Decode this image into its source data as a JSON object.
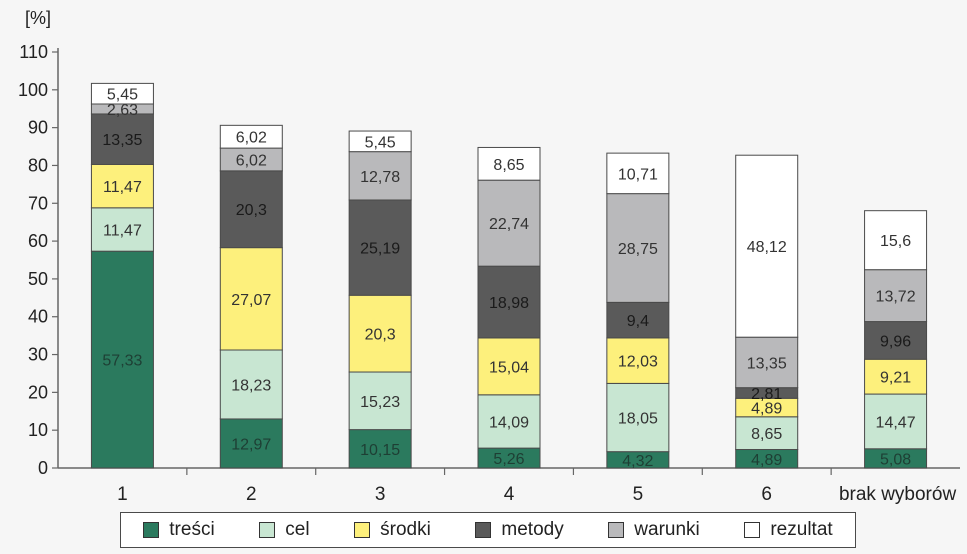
{
  "chart_data": {
    "type": "bar",
    "stacked": true,
    "ylabel": "[%]",
    "ylim": [
      0,
      110
    ],
    "ytick_step": 10,
    "grid": false,
    "legend_position": "bottom",
    "categories": [
      "1",
      "2",
      "3",
      "4",
      "5",
      "6",
      "brak wyborów"
    ],
    "series": [
      {
        "name": "treści",
        "color": "#2b7a5e",
        "label_color": "#1e3f34",
        "values": [
          57.33,
          12.97,
          10.15,
          5.26,
          4.32,
          4.89,
          5.08
        ],
        "labels": [
          "57,33",
          "12,97",
          "10,15",
          "5,26",
          "4,32",
          "4,89",
          "5,08"
        ]
      },
      {
        "name": "cel",
        "color": "#c8e6d2",
        "label_color": "#333333",
        "values": [
          11.47,
          18.23,
          15.23,
          14.09,
          18.05,
          8.65,
          14.47
        ],
        "labels": [
          "11,47",
          "18,23",
          "15,23",
          "14,09",
          "18,05",
          "8,65",
          "14,47"
        ]
      },
      {
        "name": "środki",
        "color": "#fdf07c",
        "label_color": "#333333",
        "values": [
          11.47,
          27.07,
          20.3,
          15.04,
          12.03,
          4.89,
          9.21
        ],
        "labels": [
          "11,47",
          "27,07",
          "20,3",
          "15,04",
          "12,03",
          "4,89",
          "9,21"
        ]
      },
      {
        "name": "metody",
        "color": "#5a5a5a",
        "label_color": "#1a1a1a",
        "values": [
          13.35,
          20.3,
          25.19,
          18.98,
          9.4,
          2.81,
          9.96
        ],
        "labels": [
          "13,35",
          "20,3",
          "25,19",
          "18,98",
          "9,4",
          "2,81",
          "9,96"
        ]
      },
      {
        "name": "warunki",
        "color": "#b9b9bb",
        "label_color": "#333333",
        "values": [
          2.63,
          6.02,
          12.78,
          22.74,
          28.75,
          13.35,
          13.72
        ],
        "labels": [
          "2,63",
          "6,02",
          "12,78",
          "22,74",
          "28,75",
          "13,35",
          "13,72"
        ]
      },
      {
        "name": "rezultat",
        "color": "#ffffff",
        "label_color": "#333333",
        "values": [
          5.45,
          6.02,
          5.45,
          8.65,
          10.71,
          48.12,
          15.6
        ],
        "labels": [
          "5,45",
          "6,02",
          "5,45",
          "8,65",
          "10,71",
          "48,12",
          "15,6"
        ]
      }
    ]
  }
}
